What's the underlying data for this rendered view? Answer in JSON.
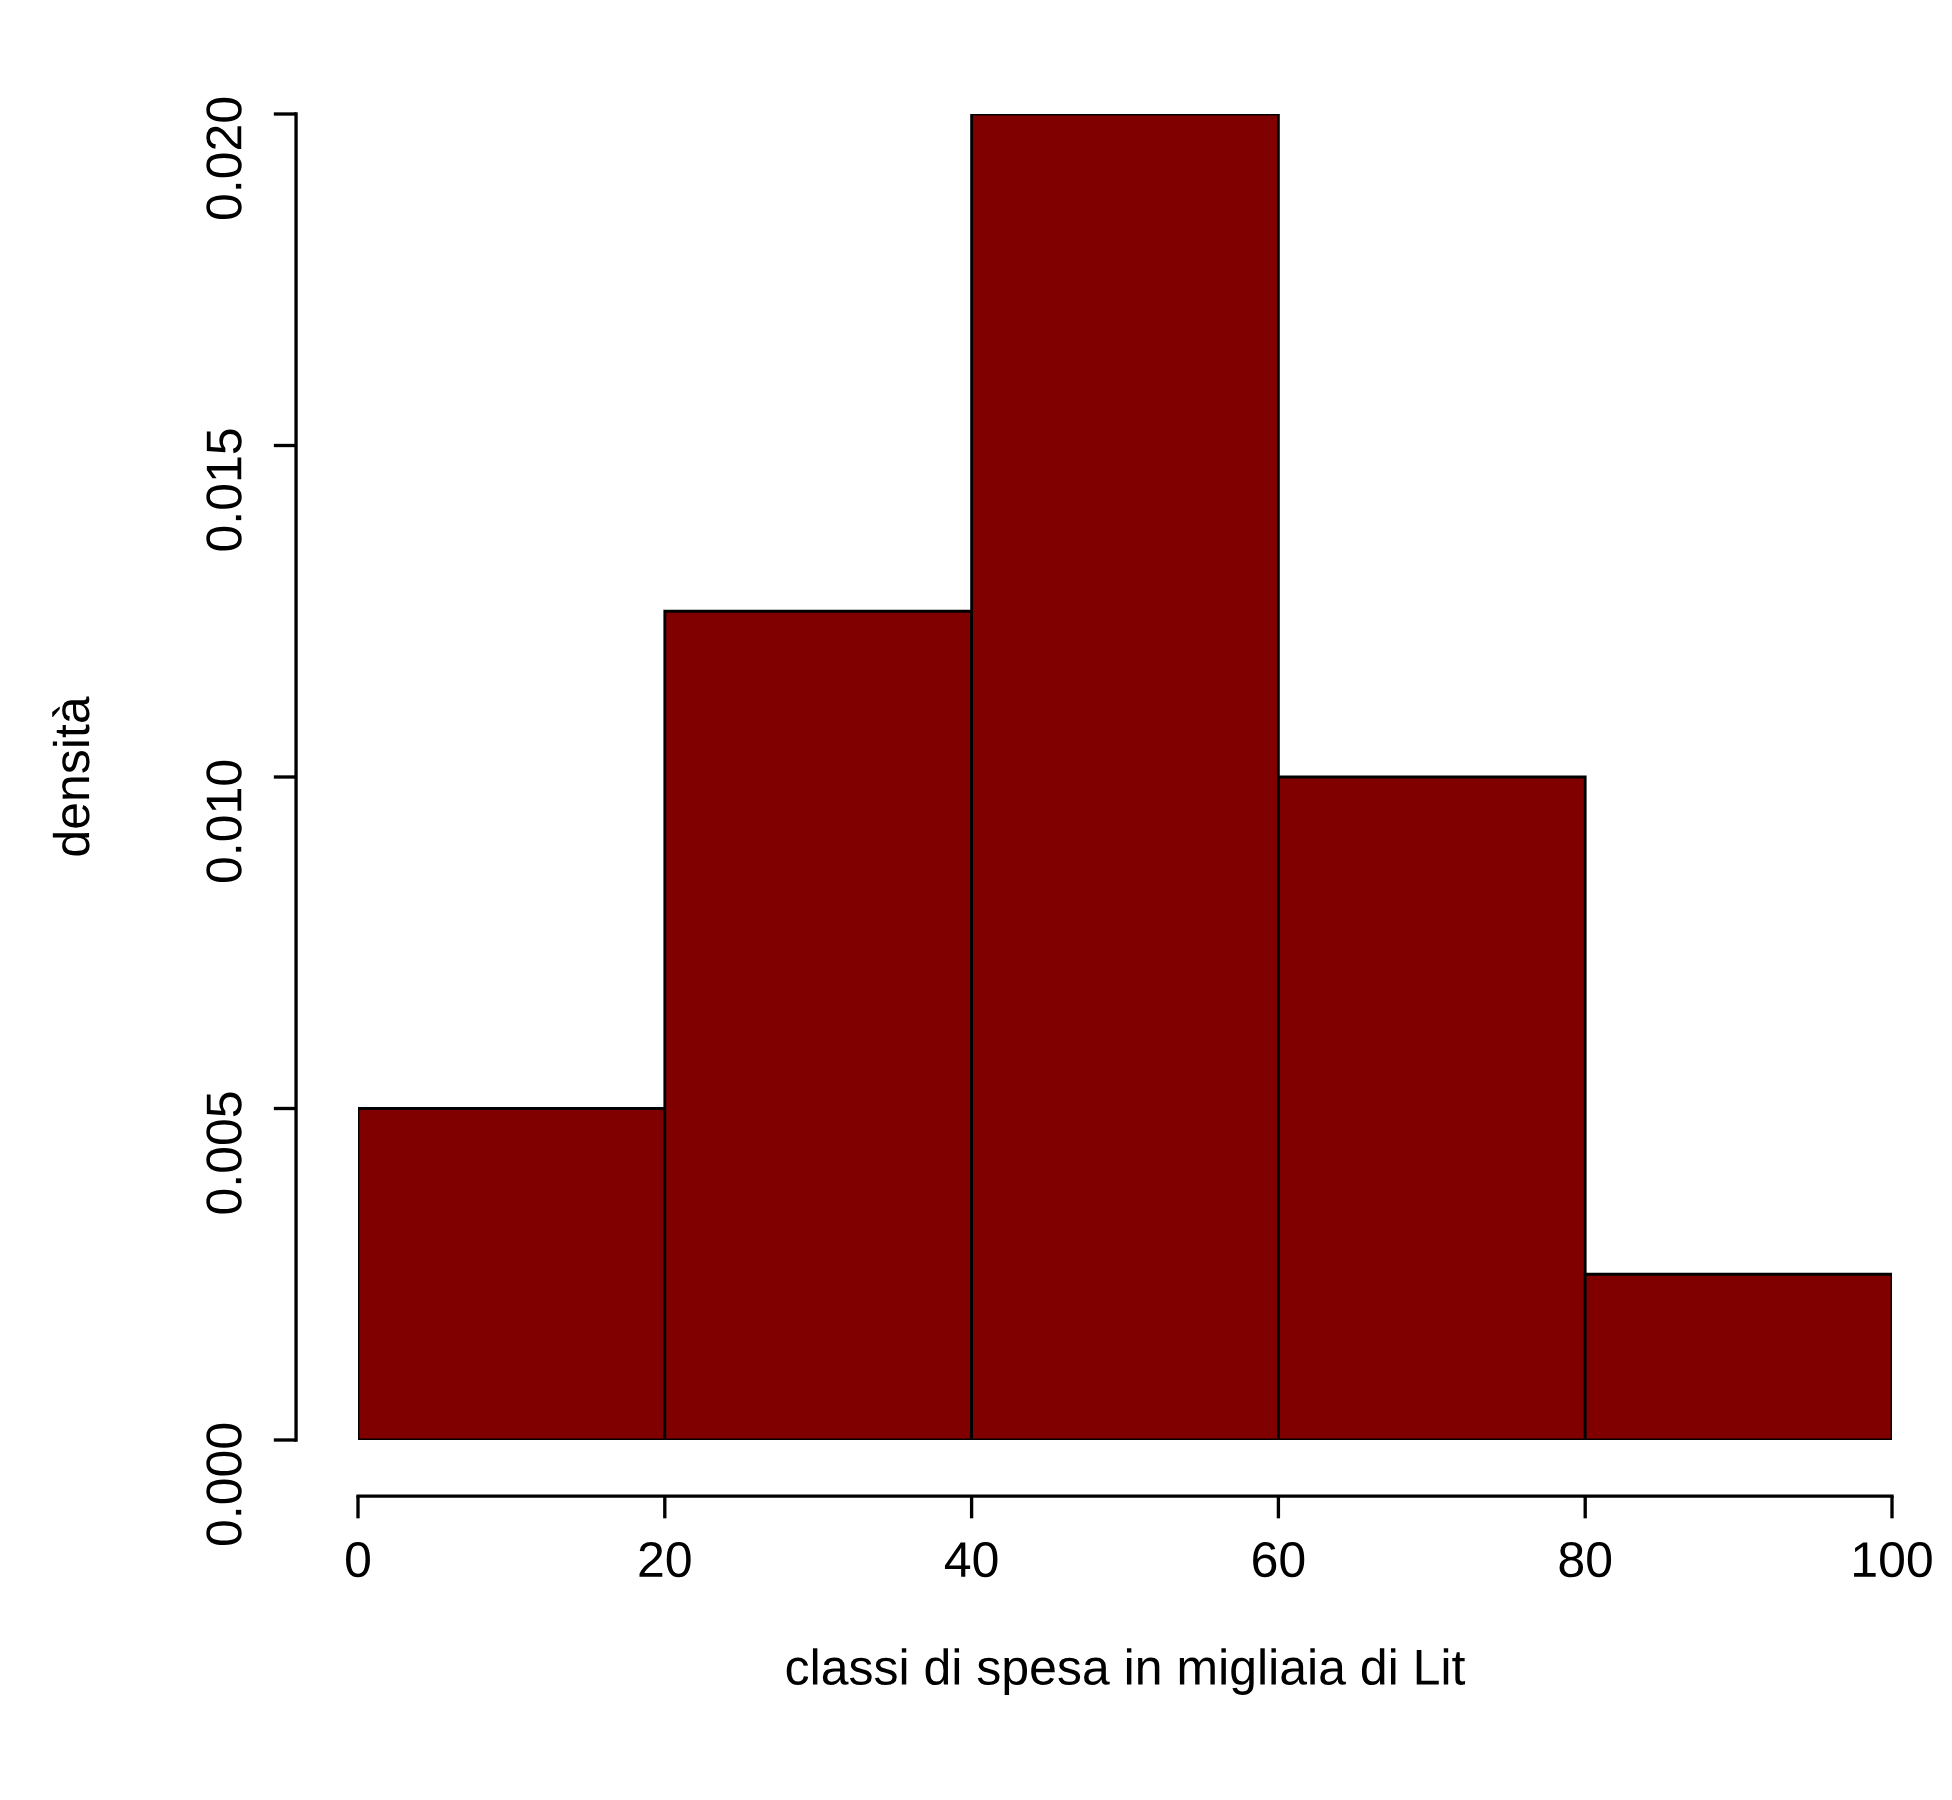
{
  "chart_data": {
    "type": "histogram",
    "xlabel": "classi di spesa in migliaia di Lit",
    "ylabel": "densità",
    "bins": [
      0,
      20,
      40,
      60,
      80,
      100
    ],
    "values": [
      0.005,
      0.0125,
      0.02,
      0.01,
      0.0025
    ],
    "color": "#800000",
    "xlim": [
      0,
      100
    ],
    "ylim": [
      0,
      0.02
    ],
    "xticks": [
      0,
      20,
      40,
      60,
      80,
      100
    ],
    "yticks": [
      {
        "value": 0,
        "label": "0.000"
      },
      {
        "value": 0.005,
        "label": "0.005"
      },
      {
        "value": 0.01,
        "label": "0.010"
      },
      {
        "value": 0.015,
        "label": "0.015"
      },
      {
        "value": 0.02,
        "label": "0.020"
      }
    ]
  }
}
